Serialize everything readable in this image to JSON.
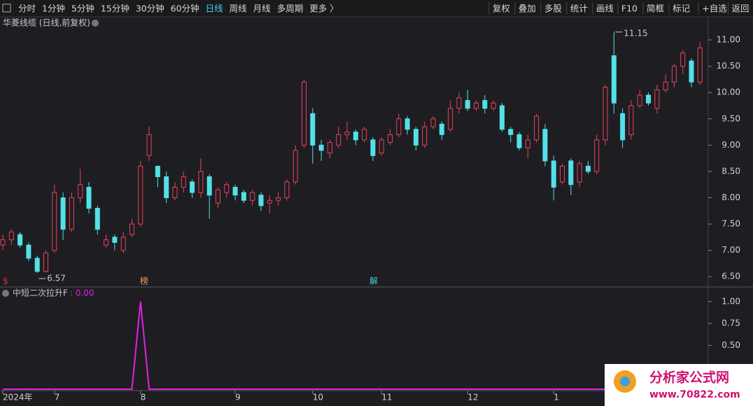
{
  "toolbar": {
    "left": [
      "分时",
      "1分钟",
      "5分钟",
      "15分钟",
      "30分钟",
      "60分钟",
      "日线",
      "周线",
      "月线",
      "多周期",
      "更多 〉"
    ],
    "active": "日线",
    "right": [
      "复权",
      "叠加",
      "多股",
      "统计",
      "画线",
      "F10",
      "简框",
      "标记",
      "+自选",
      "返回"
    ]
  },
  "events": [
    "$",
    "榜",
    "解"
  ],
  "logo": {
    "name": "分析家公式网",
    "url": "www.70822.com"
  },
  "chart_data": [
    {
      "type": "candlestick",
      "title": "华菱线缆 (日线,前复权)",
      "categories": [
        "2024年",
        null,
        null,
        null,
        null,
        null,
        "7",
        null,
        null,
        null,
        null,
        null,
        null,
        null,
        null,
        null,
        "8",
        null,
        null,
        null,
        null,
        null,
        null,
        null,
        null,
        null,
        null,
        "9",
        null,
        null,
        null,
        null,
        null,
        null,
        null,
        null,
        "10",
        null,
        null,
        null,
        null,
        null,
        null,
        null,
        "11",
        null,
        null,
        null,
        null,
        null,
        null,
        null,
        null,
        null,
        "12",
        null,
        null,
        null,
        null,
        null,
        null,
        null,
        null,
        null,
        "1",
        null,
        null,
        null,
        null,
        null,
        null,
        null,
        null,
        null,
        null,
        null,
        null,
        null,
        null,
        null,
        null,
        null
      ],
      "open": [
        7.1,
        7.2,
        7.3,
        7.1,
        6.85,
        6.6,
        7.0,
        8.0,
        7.4,
        8.0,
        8.2,
        7.8,
        7.1,
        7.25,
        7.0,
        7.3,
        7.5,
        8.8,
        8.6,
        8.4,
        8.0,
        8.2,
        8.3,
        8.1,
        8.4,
        7.9,
        8.1,
        8.2,
        8.1,
        7.95,
        8.05,
        7.9,
        7.95,
        8.0,
        8.3,
        9.0,
        9.6,
        9.0,
        8.85,
        9.0,
        9.2,
        9.25,
        9.1,
        9.1,
        8.85,
        9.05,
        9.2,
        9.5,
        9.3,
        9.0,
        9.35,
        9.4,
        9.3,
        9.7,
        9.85,
        9.7,
        9.85,
        9.7,
        9.75,
        9.3,
        9.2,
        8.95,
        9.1,
        9.3,
        8.7,
        8.3,
        8.7,
        8.3,
        8.6,
        8.5,
        9.1,
        10.7,
        9.6,
        9.2,
        9.75,
        9.95,
        9.7,
        10.05,
        10.2,
        10.5,
        10.6,
        10.2
      ],
      "high": [
        7.3,
        7.4,
        7.35,
        7.15,
        6.9,
        7.0,
        8.25,
        8.1,
        8.1,
        8.55,
        8.3,
        7.85,
        7.3,
        7.3,
        7.35,
        7.6,
        8.7,
        9.35,
        8.6,
        8.5,
        8.3,
        8.5,
        8.35,
        8.75,
        8.45,
        8.2,
        8.3,
        8.25,
        8.15,
        8.15,
        8.1,
        8.05,
        8.1,
        8.35,
        9.0,
        10.25,
        9.7,
        9.1,
        9.1,
        9.35,
        9.45,
        9.3,
        9.35,
        9.15,
        9.15,
        9.3,
        9.6,
        9.55,
        9.35,
        9.45,
        9.55,
        9.45,
        9.85,
        10.0,
        10.05,
        9.85,
        9.95,
        9.85,
        9.8,
        9.35,
        9.25,
        9.2,
        9.6,
        9.4,
        8.8,
        8.65,
        8.75,
        8.7,
        8.7,
        9.2,
        10.15,
        11.15,
        9.7,
        9.85,
        10.05,
        10.0,
        10.15,
        10.35,
        10.55,
        10.8,
        10.65,
        10.95
      ],
      "low": [
        7.0,
        7.1,
        7.05,
        6.8,
        6.57,
        6.58,
        6.95,
        7.2,
        7.35,
        7.9,
        7.7,
        7.3,
        7.05,
        7.0,
        6.95,
        7.25,
        7.45,
        8.7,
        8.2,
        7.9,
        7.95,
        8.1,
        8.0,
        8.0,
        7.6,
        7.8,
        8.0,
        7.95,
        7.9,
        7.85,
        7.75,
        7.7,
        7.85,
        7.95,
        8.25,
        8.95,
        8.65,
        8.7,
        8.75,
        8.95,
        9.1,
        9.0,
        9.05,
        8.7,
        8.8,
        9.0,
        9.15,
        9.2,
        8.9,
        8.95,
        9.3,
        9.1,
        9.25,
        9.6,
        9.65,
        9.65,
        9.6,
        9.65,
        9.25,
        9.05,
        8.9,
        8.75,
        9.05,
        8.6,
        7.95,
        8.25,
        8.05,
        8.2,
        8.45,
        8.45,
        9.0,
        9.6,
        8.95,
        9.1,
        9.7,
        9.75,
        9.6,
        10.0,
        10.1,
        10.35,
        10.1,
        10.15
      ],
      "close": [
        7.2,
        7.35,
        7.1,
        6.85,
        6.6,
        6.95,
        8.1,
        7.4,
        8.0,
        8.25,
        7.8,
        7.4,
        7.2,
        7.15,
        7.25,
        7.5,
        8.6,
        9.2,
        8.4,
        8.0,
        8.2,
        8.4,
        8.1,
        8.5,
        8.05,
        8.15,
        8.25,
        8.05,
        7.95,
        8.1,
        7.85,
        7.95,
        8.0,
        8.3,
        8.9,
        10.2,
        9.0,
        8.9,
        9.05,
        9.2,
        9.25,
        9.1,
        9.3,
        8.8,
        9.1,
        9.2,
        9.5,
        9.3,
        9.0,
        9.35,
        9.5,
        9.2,
        9.7,
        9.9,
        9.7,
        9.8,
        9.7,
        9.8,
        9.3,
        9.2,
        8.95,
        9.1,
        9.55,
        8.7,
        8.2,
        8.6,
        8.25,
        8.65,
        8.5,
        9.1,
        10.1,
        9.8,
        9.1,
        9.75,
        9.95,
        9.8,
        10.05,
        10.2,
        10.5,
        10.75,
        10.2,
        10.85
      ],
      "up_color": "#e8415a",
      "down_color": "#54e0e8",
      "annotations": [
        {
          "text": "6.57",
          "value": 6.57
        },
        {
          "text": "11.15",
          "value": 11.15
        }
      ],
      "ylim": [
        6.33,
        11.2
      ],
      "yticks": [
        {
          "value": 6.5,
          "label": "6.50"
        },
        {
          "value": 7,
          "label": "7.00"
        },
        {
          "value": 7.5,
          "label": "7.50"
        },
        {
          "value": 8,
          "label": "8.00"
        },
        {
          "value": 8.5,
          "label": "8.50"
        },
        {
          "value": 9,
          "label": "9.00"
        },
        {
          "value": 9.5,
          "label": "9.50"
        },
        {
          "value": 10,
          "label": "10.00"
        },
        {
          "value": 10.5,
          "label": "10.50"
        },
        {
          "value": 11,
          "label": "11.00"
        }
      ]
    },
    {
      "type": "line",
      "title": "中短二次拉升F",
      "legend_value": {
        "value": 0,
        "label": ": 0.00"
      },
      "color": "#e020e0",
      "values": [
        0,
        0,
        0,
        0,
        0,
        0,
        0,
        0,
        0,
        0,
        0,
        0,
        0,
        0,
        0,
        0,
        1,
        0,
        0,
        0,
        0,
        0,
        0,
        0,
        0,
        0,
        0,
        0,
        0,
        0,
        0,
        0,
        0,
        0,
        0,
        0,
        0,
        0,
        0,
        0,
        0,
        0,
        0,
        0,
        0,
        0,
        0,
        0,
        0,
        0,
        0,
        0,
        0,
        0,
        0,
        0,
        0,
        0,
        0,
        0,
        0,
        0,
        0,
        0,
        0,
        0,
        0,
        0,
        0,
        0,
        0,
        0,
        0,
        0,
        0,
        0,
        0,
        0,
        0,
        0,
        0,
        0
      ],
      "ylim": [
        0,
        1.15
      ],
      "yticks": [
        {
          "value": 0.5,
          "label": "0.50"
        },
        {
          "value": 0.75,
          "label": "0.75"
        },
        {
          "value": 1,
          "label": "1.00"
        }
      ]
    }
  ]
}
